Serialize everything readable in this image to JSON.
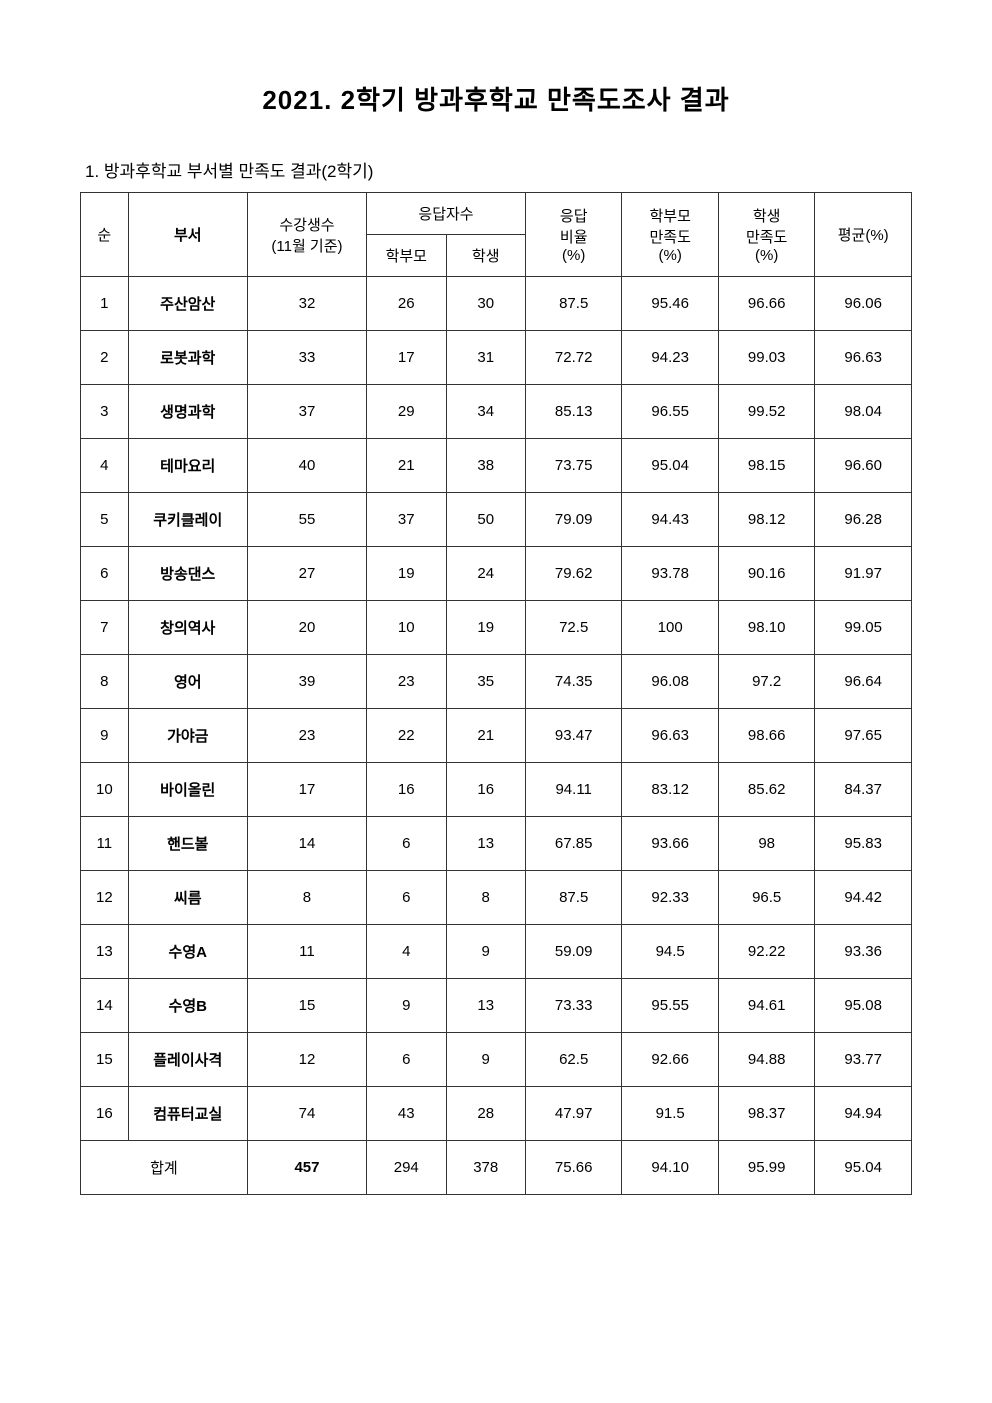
{
  "title": "2021. 2학기 방과후학교 만족도조사 결과",
  "subtitle": "1. 방과후학교 부서별 만족도 결과(2학기)",
  "table": {
    "headers": {
      "idx": "순",
      "dept": "부서",
      "count": "수강생수\n(11월 기준)",
      "count_line1": "수강생수",
      "count_line2": "(11월 기준)",
      "responders": "응답자수",
      "parent": "학부모",
      "student": "학생",
      "resp_rate": "응답\n비율\n(%)",
      "resp_rate_l1": "응답",
      "resp_rate_l2": "비율",
      "resp_rate_l3": "(%)",
      "parent_sat": "학부모\n만족도\n(%)",
      "parent_sat_l1": "학부모",
      "parent_sat_l2": "만족도",
      "parent_sat_l3": "(%)",
      "student_sat": "학생\n만족도\n(%)",
      "student_sat_l1": "학생",
      "student_sat_l2": "만족도",
      "student_sat_l3": "(%)",
      "avg": "평균(%)"
    },
    "rows": [
      {
        "idx": "1",
        "dept": "주산암산",
        "count": "32",
        "parent": "26",
        "student": "30",
        "resp_rate": "87.5",
        "parent_sat": "95.46",
        "student_sat": "96.66",
        "avg": "96.06"
      },
      {
        "idx": "2",
        "dept": "로봇과학",
        "count": "33",
        "parent": "17",
        "student": "31",
        "resp_rate": "72.72",
        "parent_sat": "94.23",
        "student_sat": "99.03",
        "avg": "96.63"
      },
      {
        "idx": "3",
        "dept": "생명과학",
        "count": "37",
        "parent": "29",
        "student": "34",
        "resp_rate": "85.13",
        "parent_sat": "96.55",
        "student_sat": "99.52",
        "avg": "98.04"
      },
      {
        "idx": "4",
        "dept": "테마요리",
        "count": "40",
        "parent": "21",
        "student": "38",
        "resp_rate": "73.75",
        "parent_sat": "95.04",
        "student_sat": "98.15",
        "avg": "96.60"
      },
      {
        "idx": "5",
        "dept": "쿠키클레이",
        "count": "55",
        "parent": "37",
        "student": "50",
        "resp_rate": "79.09",
        "parent_sat": "94.43",
        "student_sat": "98.12",
        "avg": "96.28"
      },
      {
        "idx": "6",
        "dept": "방송댄스",
        "count": "27",
        "parent": "19",
        "student": "24",
        "resp_rate": "79.62",
        "parent_sat": "93.78",
        "student_sat": "90.16",
        "avg": "91.97"
      },
      {
        "idx": "7",
        "dept": "창의역사",
        "count": "20",
        "parent": "10",
        "student": "19",
        "resp_rate": "72.5",
        "parent_sat": "100",
        "student_sat": "98.10",
        "avg": "99.05"
      },
      {
        "idx": "8",
        "dept": "영어",
        "count": "39",
        "parent": "23",
        "student": "35",
        "resp_rate": "74.35",
        "parent_sat": "96.08",
        "student_sat": "97.2",
        "avg": "96.64"
      },
      {
        "idx": "9",
        "dept": "가야금",
        "count": "23",
        "parent": "22",
        "student": "21",
        "resp_rate": "93.47",
        "parent_sat": "96.63",
        "student_sat": "98.66",
        "avg": "97.65"
      },
      {
        "idx": "10",
        "dept": "바이올린",
        "count": "17",
        "parent": "16",
        "student": "16",
        "resp_rate": "94.11",
        "parent_sat": "83.12",
        "student_sat": "85.62",
        "avg": "84.37"
      },
      {
        "idx": "11",
        "dept": "핸드볼",
        "count": "14",
        "parent": "6",
        "student": "13",
        "resp_rate": "67.85",
        "parent_sat": "93.66",
        "student_sat": "98",
        "avg": "95.83"
      },
      {
        "idx": "12",
        "dept": "씨름",
        "count": "8",
        "parent": "6",
        "student": "8",
        "resp_rate": "87.5",
        "parent_sat": "92.33",
        "student_sat": "96.5",
        "avg": "94.42"
      },
      {
        "idx": "13",
        "dept": "수영A",
        "count": "11",
        "parent": "4",
        "student": "9",
        "resp_rate": "59.09",
        "parent_sat": "94.5",
        "student_sat": "92.22",
        "avg": "93.36"
      },
      {
        "idx": "14",
        "dept": "수영B",
        "count": "15",
        "parent": "9",
        "student": "13",
        "resp_rate": "73.33",
        "parent_sat": "95.55",
        "student_sat": "94.61",
        "avg": "95.08"
      },
      {
        "idx": "15",
        "dept": "플레이사격",
        "count": "12",
        "parent": "6",
        "student": "9",
        "resp_rate": "62.5",
        "parent_sat": "92.66",
        "student_sat": "94.88",
        "avg": "93.77"
      },
      {
        "idx": "16",
        "dept": "컴퓨터교실",
        "count": "74",
        "parent": "43",
        "student": "28",
        "resp_rate": "47.97",
        "parent_sat": "91.5",
        "student_sat": "98.37",
        "avg": "94.94"
      }
    ],
    "total": {
      "label": "합계",
      "count": "457",
      "parent": "294",
      "student": "378",
      "resp_rate": "75.66",
      "parent_sat": "94.10",
      "student_sat": "95.99",
      "avg": "95.04"
    }
  }
}
